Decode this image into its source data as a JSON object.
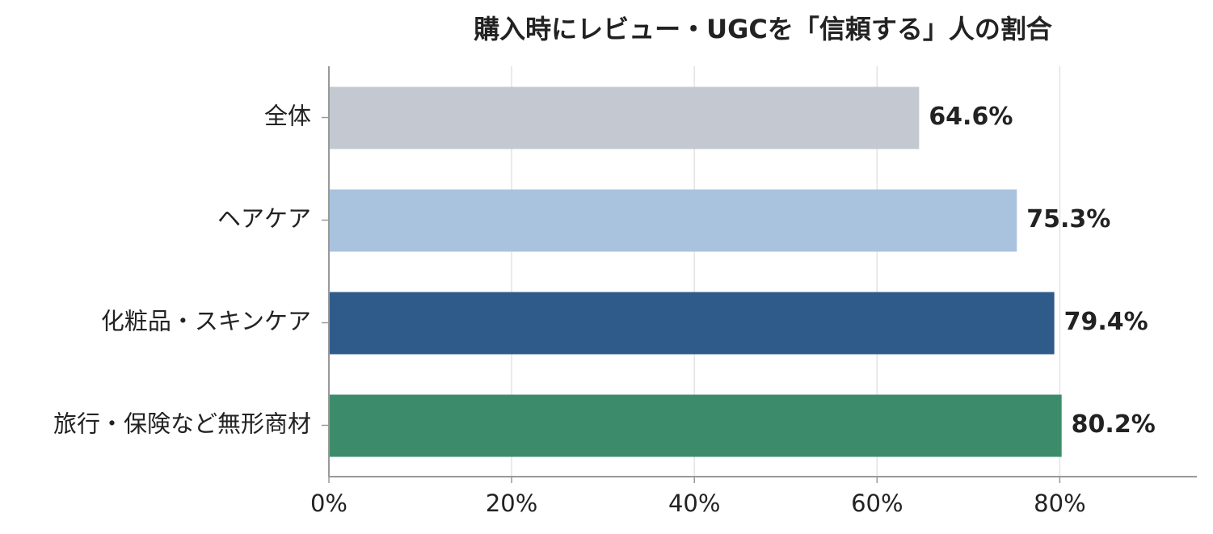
{
  "chart_data": {
    "type": "hbar",
    "title": "購入時にレビュー・UGCを「信頼する」人の割合",
    "categories": [
      "全体",
      "ヘアケア",
      "化粧品・スキンケア",
      "旅行・保険など無形商材"
    ],
    "values": [
      64.6,
      75.3,
      79.4,
      80.2
    ],
    "value_labels": [
      "64.6%",
      "75.3%",
      "79.4%",
      "80.2%"
    ],
    "colors": [
      "#c4c8d0",
      "#a9c3df",
      "#2e5b8a",
      "#3c8c6c"
    ],
    "xlim": [
      0,
      95
    ],
    "xticks": [
      {
        "value": 0,
        "label": "0%"
      },
      {
        "value": 20,
        "label": "20%"
      },
      {
        "value": 40,
        "label": "40%"
      },
      {
        "value": 60,
        "label": "60%"
      },
      {
        "value": 80,
        "label": "80%"
      }
    ],
    "grid": true
  }
}
